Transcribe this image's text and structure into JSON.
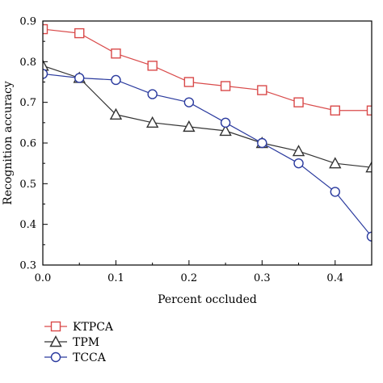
{
  "chart_data": {
    "type": "line",
    "xlabel": "Percent occluded",
    "ylabel": "Recognition accuracy",
    "xlim": [
      0,
      0.45
    ],
    "ylim": [
      0.3,
      0.9
    ],
    "x_ticks": [
      "0.0",
      "0.1",
      "0.2",
      "0.3",
      "0.4"
    ],
    "x_tick_values": [
      0,
      0.1,
      0.2,
      0.3,
      0.4
    ],
    "y_ticks": [
      "0.3",
      "0.4",
      "0.5",
      "0.6",
      "0.7",
      "0.8",
      "0.9"
    ],
    "y_tick_values": [
      0.3,
      0.4,
      0.5,
      0.6,
      0.7,
      0.8,
      0.9
    ],
    "grid": false,
    "legend_position": "bottom-left",
    "x": [
      0,
      0.05,
      0.1,
      0.15,
      0.2,
      0.25,
      0.3,
      0.35,
      0.4,
      0.45
    ],
    "series": [
      {
        "name": "KTPCA",
        "color": "#d94a4a",
        "marker": "square",
        "values": [
          0.88,
          0.87,
          0.82,
          0.79,
          0.75,
          0.74,
          0.73,
          0.7,
          0.68,
          0.68
        ]
      },
      {
        "name": "TPM",
        "color": "#333333",
        "marker": "triangle",
        "values": [
          0.79,
          0.76,
          0.67,
          0.65,
          0.64,
          0.63,
          0.6,
          0.58,
          0.55,
          0.54
        ]
      },
      {
        "name": "TCCA",
        "color": "#2a3a9e",
        "marker": "circle",
        "values": [
          0.77,
          0.76,
          0.755,
          0.72,
          0.7,
          0.65,
          0.6,
          0.55,
          0.48,
          0.37
        ]
      }
    ]
  }
}
